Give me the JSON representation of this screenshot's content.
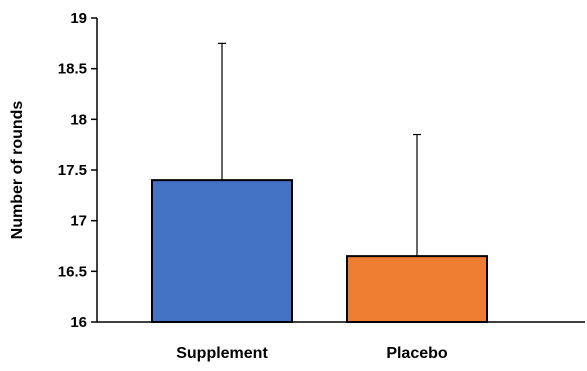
{
  "chart_data": {
    "type": "bar",
    "title": "",
    "xlabel": "",
    "ylabel": "Number of rounds",
    "ylim": [
      16,
      19
    ],
    "yticks": [
      "16",
      "16.5",
      "17",
      "17.5",
      "18",
      "18.5",
      "19"
    ],
    "categories": [
      "Supplement",
      "Placebo"
    ],
    "values": [
      17.4,
      16.65
    ],
    "error_upper": [
      1.35,
      1.2
    ],
    "colors": [
      "#4472C4",
      "#ED7D31"
    ],
    "grid": false,
    "legend": "none"
  }
}
